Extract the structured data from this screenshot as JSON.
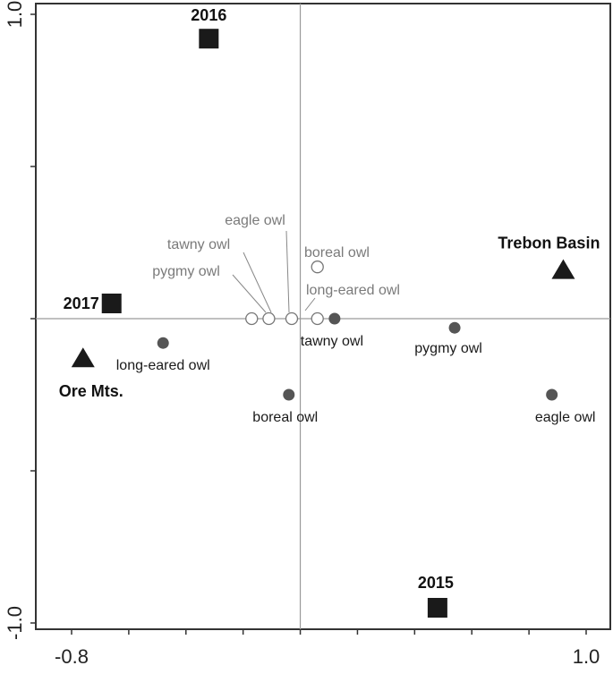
{
  "chart_data": {
    "type": "scatter",
    "title": "",
    "xlabel": "",
    "ylabel": "",
    "xlim": [
      -0.85,
      1.02
    ],
    "ylim": [
      -1.02,
      1.02
    ],
    "x_tick_labels": [
      {
        "value": -0.8,
        "label": "-0.8"
      },
      {
        "value": 1.0,
        "label": "1.0"
      }
    ],
    "y_tick_labels": [
      {
        "value": 1.0,
        "label": "1.0"
      },
      {
        "value": -1.0,
        "label": "-1.0"
      }
    ],
    "x_ticks": [
      -0.8,
      -0.6,
      -0.4,
      -0.2,
      0.0,
      0.2,
      0.4,
      0.6,
      0.8,
      1.0
    ],
    "y_ticks": [
      -1.0,
      -0.5,
      0.0,
      0.5,
      1.0
    ],
    "grid": false,
    "series": [
      {
        "name": "",
        "marker": "square",
        "color": "#1a1a1a",
        "points": [
          {
            "label": "2016",
            "x": -0.32,
            "y": 0.92
          },
          {
            "label": "2017",
            "x": -0.66,
            "y": 0.05
          },
          {
            "label": "2015",
            "x": 0.48,
            "y": -0.95
          }
        ]
      },
      {
        "name": "",
        "marker": "triangle",
        "color": "#1a1a1a",
        "points": [
          {
            "label": "Trebon Basin",
            "x": 0.92,
            "y": 0.16
          },
          {
            "label": "Ore Mts.",
            "x": -0.76,
            "y": -0.13
          }
        ]
      },
      {
        "name": "",
        "marker": "circle-open",
        "color": "#ffffff",
        "points": [
          {
            "label": "boreal owl",
            "x": 0.06,
            "y": 0.17
          },
          {
            "label": "long-eared owl",
            "x": 0.06,
            "y": 0.0
          },
          {
            "label": "eagle owl",
            "x": -0.03,
            "y": 0.0
          },
          {
            "label": "tawny owl",
            "x": -0.11,
            "y": 0.0
          },
          {
            "label": "pygmy owl",
            "x": -0.17,
            "y": 0.0
          }
        ]
      },
      {
        "name": "",
        "marker": "circle-filled",
        "color": "#555555",
        "points": [
          {
            "label": "tawny owl",
            "x": 0.12,
            "y": 0.0
          },
          {
            "label": "pygmy owl",
            "x": 0.54,
            "y": -0.03
          },
          {
            "label": "long-eared owl",
            "x": -0.48,
            "y": -0.08
          },
          {
            "label": "boreal owl",
            "x": -0.04,
            "y": -0.25
          },
          {
            "label": "eagle owl",
            "x": 0.88,
            "y": -0.25
          }
        ]
      }
    ]
  }
}
